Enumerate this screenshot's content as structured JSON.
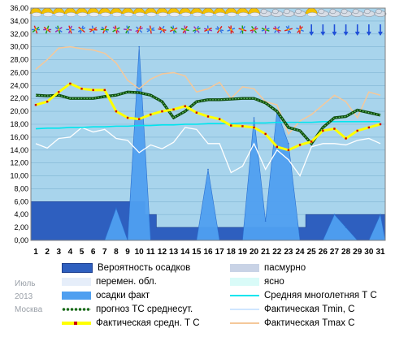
{
  "meta": {
    "month": "Июль",
    "year": "2013",
    "city": "Москва"
  },
  "colors": {
    "sky": "#a8d4ec",
    "precip_prob": "#2e5fbf",
    "precip_fact": "#4f9ff0",
    "mean_norm": "#00e5ee",
    "tmin": "#ffffff",
    "tmax": "#f5c89a",
    "forecast": "#1a6b1a",
    "actual_mean": "#ffff00",
    "overcast": "#c9d3e6",
    "variable": "#e6eefa",
    "clear": "#d9fbf8"
  },
  "legend": [
    {
      "id": "precip_prob",
      "label": "Вероятность осадков",
      "style": "fill",
      "color": "#2e5fbf"
    },
    {
      "id": "overcast",
      "label": "пасмурно",
      "style": "fill",
      "color": "#c9d3e6"
    },
    {
      "id": "variable",
      "label": "перемен. обл.",
      "style": "fill",
      "color": "#e6eefa"
    },
    {
      "id": "clear",
      "label": "ясно",
      "style": "fill",
      "color": "#d9fbf8"
    },
    {
      "id": "precip_fact",
      "label": "осадки факт",
      "style": "fill",
      "color": "#4f9ff0"
    },
    {
      "id": "mean_norm",
      "label": "Средняя многолетняя Т С",
      "style": "line",
      "color": "#00e5ee"
    },
    {
      "id": "forecast",
      "label": "прогноз ТС среднесут.",
      "style": "dots",
      "color": "#1a6b1a"
    },
    {
      "id": "tmin",
      "label": "Фактическая Tmin, C",
      "style": "line",
      "color": "#ddeeff"
    },
    {
      "id": "actual_mean",
      "label": "Фактическая средн. Т С",
      "style": "yellowred",
      "color": "#ffff00"
    },
    {
      "id": "tmax",
      "label": "Фактическая Tmax C",
      "style": "line",
      "color": "#f5c89a"
    }
  ],
  "chart_data": {
    "type": "line",
    "x": [
      1,
      2,
      3,
      4,
      5,
      6,
      7,
      8,
      9,
      10,
      11,
      12,
      13,
      14,
      15,
      16,
      17,
      18,
      19,
      20,
      21,
      22,
      23,
      24,
      25,
      26,
      27,
      28,
      29,
      30,
      31
    ],
    "ylim": [
      0,
      36
    ],
    "yticks": [
      "0,00",
      "2,00",
      "4,00",
      "6,00",
      "8,00",
      "10,00",
      "12,00",
      "14,00",
      "16,00",
      "18,00",
      "20,00",
      "22,00",
      "24,00",
      "26,00",
      "28,00",
      "30,00",
      "32,00",
      "34,00",
      "36,00"
    ],
    "series": [
      {
        "name": "Вероятность осадков",
        "kind": "area",
        "values": [
          6,
          6,
          6,
          6,
          6,
          6,
          6,
          6,
          6,
          6,
          4,
          2,
          2,
          2,
          2,
          2,
          2,
          2,
          2,
          2,
          2,
          2,
          2,
          2,
          4,
          4,
          4,
          4,
          4,
          4,
          4
        ]
      },
      {
        "name": "осадки факт",
        "kind": "area",
        "values": [
          0,
          0,
          0,
          0,
          0,
          0,
          0,
          5,
          0,
          30,
          0,
          0,
          0,
          0,
          0,
          11,
          0,
          0,
          0,
          19,
          3,
          20,
          15,
          0,
          0,
          0,
          4,
          2,
          0,
          0,
          4
        ]
      },
      {
        "name": "Средняя многолетняя Т С",
        "kind": "line",
        "values": [
          17.3,
          17.4,
          17.4,
          17.5,
          17.5,
          17.6,
          17.6,
          17.7,
          17.7,
          17.8,
          17.8,
          17.9,
          17.9,
          18.0,
          18.0,
          18.1,
          18.1,
          18.1,
          18.2,
          18.2,
          18.2,
          18.3,
          18.3,
          18.3,
          18.3,
          18.4,
          18.4,
          18.4,
          18.4,
          18.4,
          18.4
        ]
      },
      {
        "name": "Фактическая Tmin, C",
        "kind": "line",
        "values": [
          15.0,
          14.3,
          15.8,
          16.0,
          17.5,
          16.8,
          17.2,
          15.8,
          15.5,
          13.6,
          14.8,
          14.2,
          15.2,
          17.5,
          17.2,
          15.0,
          15.0,
          10.5,
          11.5,
          15.0,
          11.0,
          14.0,
          12.5,
          10.0,
          14.5,
          15.0,
          15.0,
          14.8,
          15.5,
          15.8,
          15.0
        ]
      },
      {
        "name": "Фактическая Tmax C",
        "kind": "line",
        "values": [
          26.5,
          28.0,
          29.8,
          30.0,
          29.7,
          29.5,
          29.0,
          27.5,
          24.8,
          23.5,
          25.0,
          25.8,
          26.0,
          25.5,
          23.0,
          23.5,
          24.5,
          22.0,
          23.8,
          23.5,
          21.5,
          21.0,
          16.5,
          18.5,
          19.5,
          21.0,
          22.5,
          21.5,
          19.0,
          23.0,
          22.5
        ]
      },
      {
        "name": "прогноз ТС среднесут.",
        "kind": "dots",
        "values": [
          22.5,
          22.4,
          22.5,
          22.0,
          22.0,
          22.0,
          22.3,
          22.5,
          23.0,
          22.9,
          22.5,
          21.5,
          19.0,
          20.0,
          21.5,
          21.8,
          21.8,
          21.9,
          22.0,
          22.0,
          21.3,
          20.0,
          17.5,
          17.0,
          15.0,
          17.5,
          19.0,
          19.2,
          20.2,
          19.8,
          19.4
        ]
      },
      {
        "name": "Фактическая средн. Т С",
        "kind": "yellowred",
        "values": [
          21.0,
          21.5,
          23.0,
          24.3,
          23.5,
          23.3,
          23.3,
          20.0,
          19.0,
          18.8,
          19.5,
          20.0,
          20.3,
          20.8,
          19.8,
          19.2,
          18.8,
          17.8,
          17.7,
          17.5,
          16.5,
          14.5,
          14.0,
          14.8,
          15.3,
          17.0,
          17.3,
          15.8,
          17.0,
          17.5,
          18.0
        ]
      }
    ],
    "weather_icons": [
      "sun_cloud",
      "sun_cloud",
      "sun_cloud",
      "sun_cloud",
      "sun_cloud",
      "sun_cloud",
      "sun_cloud",
      "sun_cloud",
      "sun_cloud",
      "sun_cloud",
      "sun_cloud",
      "sun_cloud",
      "sun_cloud",
      "sun_cloud",
      "sun_cloud",
      "sun_cloud",
      "sun_cloud",
      "sun_cloud",
      "sun_cloud",
      "sun_cloud",
      "cloud",
      "cloud",
      "cloud",
      "cloud",
      "sun_cloud",
      "cloud",
      "cloud",
      "cloud",
      "cloud",
      "cloud",
      "cloud"
    ],
    "wind_arrows": [
      "multi",
      "multi",
      "multi",
      "multi",
      "multi",
      "multi",
      "multi",
      "multi",
      "multi",
      "multi",
      "multi",
      "multi",
      "multi",
      "multi",
      "multi",
      "multi",
      "multi",
      "multi",
      "multi",
      "multi",
      "multi",
      "multi",
      "multi",
      "multi",
      "down",
      "down",
      "down",
      "down",
      "down",
      "down",
      "down"
    ]
  }
}
